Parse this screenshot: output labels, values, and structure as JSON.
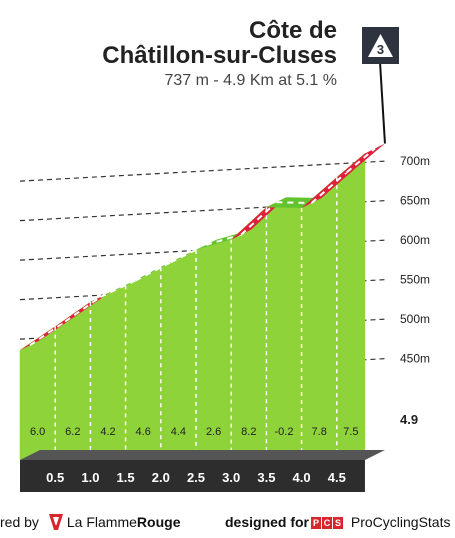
{
  "header": {
    "title_line1": "Côte de",
    "title_line2": "Châtillon-sur-Cluses",
    "subtitle": "737 m - 4.9 Km at 5.1 %",
    "category_badge": "3"
  },
  "chart_data": {
    "type": "area",
    "title": "Côte de Châtillon-sur-Cluses",
    "subtitle": "737 m - 4.9 Km at 5.1 %",
    "x_unit": "km",
    "y_unit": "m",
    "xlim": [
      0,
      4.9
    ],
    "ylim": [
      385,
      737
    ],
    "end_km_label": "4.9",
    "km_ticks": [
      "0.5",
      "1.0",
      "1.5",
      "2.0",
      "2.5",
      "3.0",
      "3.5",
      "4.0",
      "4.5"
    ],
    "altitude_ticks": [
      {
        "value": 450,
        "label": "450m"
      },
      {
        "value": 500,
        "label": "500m"
      },
      {
        "value": 550,
        "label": "550m"
      },
      {
        "value": 600,
        "label": "600m"
      },
      {
        "value": 650,
        "label": "650m"
      },
      {
        "value": 700,
        "label": "700m"
      }
    ],
    "segments": [
      {
        "start_km": 0.0,
        "end_km": 0.5,
        "gradient": 6.0,
        "label": "6.0",
        "color": "#e0203a"
      },
      {
        "start_km": 0.5,
        "end_km": 1.0,
        "gradient": 6.2,
        "label": "6.2",
        "color": "#e0203a"
      },
      {
        "start_km": 1.0,
        "end_km": 1.5,
        "gradient": 4.2,
        "label": "4.2",
        "color": "#62c42d"
      },
      {
        "start_km": 1.5,
        "end_km": 2.0,
        "gradient": 4.6,
        "label": "4.6",
        "color": "#1a5f8c"
      },
      {
        "start_km": 2.0,
        "end_km": 2.5,
        "gradient": 4.4,
        "label": "4.4",
        "color": "#1a5f8c"
      },
      {
        "start_km": 2.5,
        "end_km": 3.0,
        "gradient": 2.6,
        "label": "2.6",
        "color": "#62c42d"
      },
      {
        "start_km": 3.0,
        "end_km": 3.5,
        "gradient": 8.2,
        "label": "8.2",
        "color": "#e0203a"
      },
      {
        "start_km": 3.5,
        "end_km": 4.0,
        "gradient": -0.2,
        "label": "-0.2",
        "color": "#62c42d"
      },
      {
        "start_km": 4.0,
        "end_km": 4.5,
        "gradient": 7.8,
        "label": "7.8",
        "color": "#e0203a"
      },
      {
        "start_km": 4.5,
        "end_km": 4.9,
        "gradient": 7.5,
        "label": "7.5",
        "color": "#e0203a"
      }
    ],
    "start_altitude_m": 486,
    "colors": {
      "face": "#8fd33a",
      "side": "#a7a29c",
      "base": "#2d2d2d",
      "badge": "#2d3440"
    }
  },
  "footer": {
    "powered_text": "red by",
    "brand_part1": "La Flamme",
    "brand_part2": "Rouge",
    "designed_text": "designed for",
    "pcs_letters": [
      "P",
      "C",
      "S"
    ],
    "pcs_name": "ProCyclingStats"
  }
}
